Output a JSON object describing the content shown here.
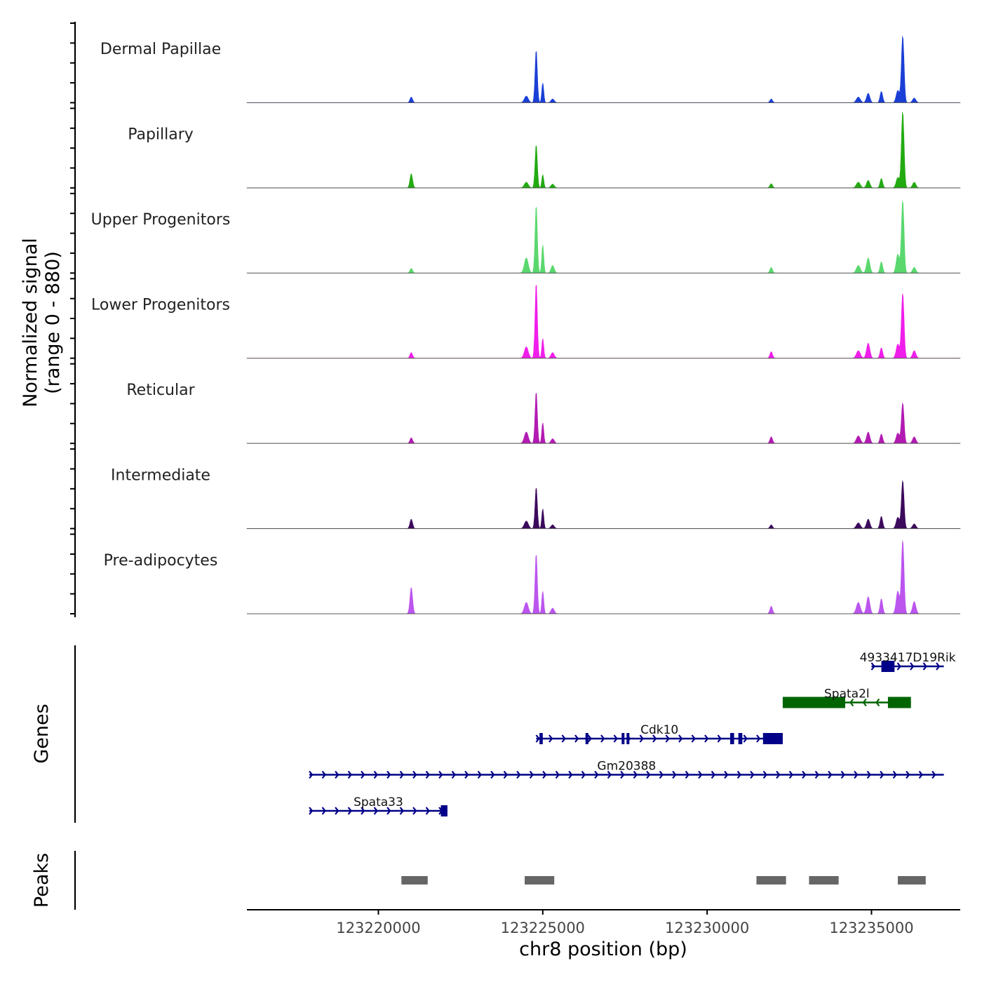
{
  "chart_data": {
    "type": "area",
    "title": "",
    "chromosome": "chr8",
    "xlabel": "chr8 position (bp)",
    "xlim": [
      123216000,
      123237700
    ],
    "xticks": [
      123220000,
      123225000,
      123230000,
      123235000
    ],
    "xtick_labels": [
      "123220000",
      "123225000",
      "123230000",
      "123235000"
    ],
    "ylabel_line1": "Normalized signal",
    "ylabel_line2": "(range 0 - 880)",
    "ylim": [
      0,
      880
    ],
    "peak_positions": [
      123221000,
      123224800,
      123231950,
      123235950
    ],
    "series": [
      {
        "name": "Dermal Papillae",
        "color": "#1a3fd6",
        "peaks": [
          [
            123221000,
            60,
            40
          ],
          [
            123224500,
            70,
            60
          ],
          [
            123224800,
            560,
            35
          ],
          [
            123225000,
            210,
            30
          ],
          [
            123225300,
            40,
            50
          ],
          [
            123231950,
            40,
            40
          ],
          [
            123234600,
            60,
            60
          ],
          [
            123234900,
            100,
            50
          ],
          [
            123235300,
            120,
            40
          ],
          [
            123235800,
            130,
            50
          ],
          [
            123235950,
            710,
            40
          ],
          [
            123236300,
            50,
            50
          ]
        ]
      },
      {
        "name": "Papillary",
        "color": "#22aa11",
        "peaks": [
          [
            123221000,
            150,
            40
          ],
          [
            123224500,
            60,
            60
          ],
          [
            123224800,
            460,
            35
          ],
          [
            123225000,
            140,
            30
          ],
          [
            123225300,
            40,
            50
          ],
          [
            123231950,
            45,
            40
          ],
          [
            123234600,
            60,
            60
          ],
          [
            123234900,
            80,
            50
          ],
          [
            123235300,
            100,
            40
          ],
          [
            123235800,
            110,
            50
          ],
          [
            123235950,
            810,
            40
          ],
          [
            123236300,
            60,
            50
          ]
        ]
      },
      {
        "name": "Upper Progenitors",
        "color": "#5ad86e",
        "peaks": [
          [
            123221000,
            50,
            40
          ],
          [
            123224500,
            160,
            60
          ],
          [
            123224800,
            720,
            35
          ],
          [
            123225000,
            300,
            30
          ],
          [
            123225300,
            80,
            50
          ],
          [
            123231950,
            60,
            40
          ],
          [
            123234600,
            80,
            60
          ],
          [
            123234900,
            160,
            50
          ],
          [
            123235300,
            120,
            40
          ],
          [
            123235800,
            200,
            50
          ],
          [
            123235950,
            770,
            40
          ],
          [
            123236300,
            60,
            50
          ]
        ]
      },
      {
        "name": "Lower Progenitors",
        "color": "#f01eea",
        "peaks": [
          [
            123221000,
            60,
            40
          ],
          [
            123224500,
            120,
            60
          ],
          [
            123224800,
            800,
            35
          ],
          [
            123225000,
            210,
            30
          ],
          [
            123225300,
            60,
            50
          ],
          [
            123231950,
            70,
            40
          ],
          [
            123234600,
            80,
            60
          ],
          [
            123234900,
            160,
            50
          ],
          [
            123235300,
            110,
            40
          ],
          [
            123235800,
            150,
            50
          ],
          [
            123235950,
            690,
            40
          ],
          [
            123236300,
            80,
            50
          ]
        ]
      },
      {
        "name": "Reticular",
        "color": "#b21ab2",
        "peaks": [
          [
            123221000,
            60,
            40
          ],
          [
            123224500,
            120,
            60
          ],
          [
            123224800,
            550,
            35
          ],
          [
            123225000,
            220,
            30
          ],
          [
            123225300,
            50,
            50
          ],
          [
            123231950,
            70,
            40
          ],
          [
            123234600,
            80,
            60
          ],
          [
            123234900,
            120,
            50
          ],
          [
            123235300,
            100,
            40
          ],
          [
            123235800,
            110,
            50
          ],
          [
            123235950,
            430,
            40
          ],
          [
            123236300,
            70,
            50
          ]
        ]
      },
      {
        "name": "Intermediate",
        "color": "#3c0a5c",
        "peaks": [
          [
            123221000,
            100,
            40
          ],
          [
            123224500,
            80,
            60
          ],
          [
            123224800,
            440,
            35
          ],
          [
            123225000,
            210,
            30
          ],
          [
            123225300,
            40,
            50
          ],
          [
            123231950,
            40,
            40
          ],
          [
            123234600,
            60,
            60
          ],
          [
            123234900,
            100,
            50
          ],
          [
            123235300,
            130,
            40
          ],
          [
            123235800,
            120,
            50
          ],
          [
            123235950,
            510,
            40
          ],
          [
            123236300,
            50,
            50
          ]
        ]
      },
      {
        "name": "Pre-adipocytes",
        "color": "#bb55ee",
        "peaks": [
          [
            123221000,
            280,
            40
          ],
          [
            123224500,
            120,
            60
          ],
          [
            123224800,
            640,
            35
          ],
          [
            123225000,
            240,
            30
          ],
          [
            123225300,
            60,
            50
          ],
          [
            123231950,
            80,
            40
          ],
          [
            123234600,
            120,
            60
          ],
          [
            123234900,
            180,
            50
          ],
          [
            123235300,
            160,
            40
          ],
          [
            123235800,
            240,
            50
          ],
          [
            123235950,
            780,
            40
          ],
          [
            123236300,
            130,
            50
          ]
        ]
      }
    ],
    "genes_label": "Genes",
    "genes": [
      {
        "name": "4933417D19Rik",
        "strand": "+",
        "color": "#000088",
        "row": 0,
        "start": 123235000,
        "end": 123237200,
        "exons": [
          [
            123235300,
            123235700
          ]
        ]
      },
      {
        "name": "Spata2l",
        "strand": "-",
        "color": "#006400",
        "row": 1,
        "start": 123232300,
        "end": 123236200,
        "exons": [
          [
            123232300,
            123234200
          ],
          [
            123235500,
            123236200
          ]
        ]
      },
      {
        "name": "Cdk10",
        "strand": "+",
        "color": "#000088",
        "row": 2,
        "start": 123224800,
        "end": 123232300,
        "exons": [
          [
            123224900,
            123225000
          ],
          [
            123226300,
            123226330
          ],
          [
            123227400,
            123227440
          ],
          [
            123227550,
            123227600
          ],
          [
            123230700,
            123230820
          ],
          [
            123230950,
            123231070
          ],
          [
            123231700,
            123232300
          ]
        ]
      },
      {
        "name": "Gm20388",
        "strand": "+",
        "color": "#000088",
        "row": 3,
        "start": 123217900,
        "end": 123237200,
        "exons": []
      },
      {
        "name": "Spata33",
        "strand": "+",
        "color": "#000088",
        "row": 4,
        "start": 123217900,
        "end": 123222100,
        "exons": [
          [
            123221900,
            123222100
          ]
        ]
      }
    ],
    "peaks_label": "Peaks",
    "peaks": [
      [
        123220700,
        123221500
      ],
      [
        123224450,
        123225350
      ],
      [
        123231500,
        123232400
      ],
      [
        123233100,
        123234000
      ],
      [
        123235800,
        123236650
      ]
    ],
    "peaks_color": "#666666"
  }
}
